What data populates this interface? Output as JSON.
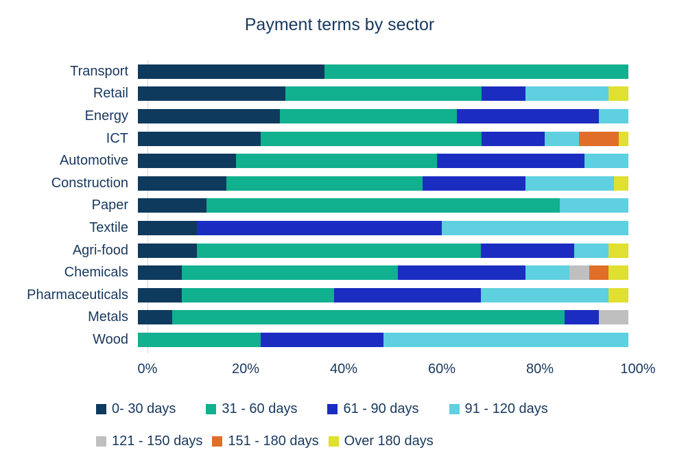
{
  "title": "Payment terms by sector",
  "colors": {
    "text": "#17375e",
    "axis_line": "#d9d9d9",
    "background": "#ffffff"
  },
  "chart_data": {
    "type": "bar",
    "orientation": "horizontal",
    "stacked": true,
    "title": "Payment terms by sector",
    "xlabel": "",
    "ylabel": "",
    "xlim": [
      0,
      100
    ],
    "grid": false,
    "legend_position": "bottom",
    "x_tick_labels": [
      "0%",
      "20%",
      "40%",
      "60%",
      "80%",
      "100%"
    ],
    "x_tick_values": [
      0,
      20,
      40,
      60,
      80,
      100
    ],
    "categories": [
      "Transport",
      "Retail",
      "Energy",
      "ICT",
      "Automotive",
      "Construction",
      "Paper",
      "Textile",
      "Agri-food",
      "Chemicals",
      "Pharmaceuticals",
      "Metals",
      "Wood"
    ],
    "series": [
      {
        "name": "0- 30 days",
        "color": "#0e3a5d",
        "values": [
          38,
          30,
          29,
          25,
          20,
          18,
          14,
          12,
          12,
          9,
          9,
          7,
          0
        ]
      },
      {
        "name": "31 - 60 days",
        "color": "#11b08e",
        "values": [
          62,
          40,
          36,
          45,
          41,
          40,
          72,
          0,
          58,
          44,
          31,
          80,
          25
        ]
      },
      {
        "name": "61 - 90 days",
        "color": "#1b2dc1",
        "values": [
          0,
          9,
          29,
          13,
          30,
          21,
          0,
          50,
          19,
          26,
          30,
          7,
          25
        ]
      },
      {
        "name": "91 - 120 days",
        "color": "#5ed0e0",
        "values": [
          0,
          17,
          6,
          7,
          9,
          18,
          14,
          38,
          7,
          9,
          26,
          0,
          50
        ]
      },
      {
        "name": "121 - 150 days",
        "color": "#bfbfbf",
        "values": [
          0,
          0,
          0,
          0,
          0,
          0,
          0,
          0,
          0,
          4,
          0,
          6,
          0
        ]
      },
      {
        "name": "151 - 180 days",
        "color": "#e06e28",
        "values": [
          0,
          0,
          0,
          8,
          0,
          0,
          0,
          0,
          0,
          4,
          0,
          0,
          0
        ]
      },
      {
        "name": "Over 180 days",
        "color": "#dfe02f",
        "values": [
          0,
          4,
          0,
          2,
          0,
          3,
          0,
          0,
          4,
          4,
          4,
          0,
          0
        ]
      }
    ],
    "legend_rows": [
      4,
      3
    ]
  }
}
